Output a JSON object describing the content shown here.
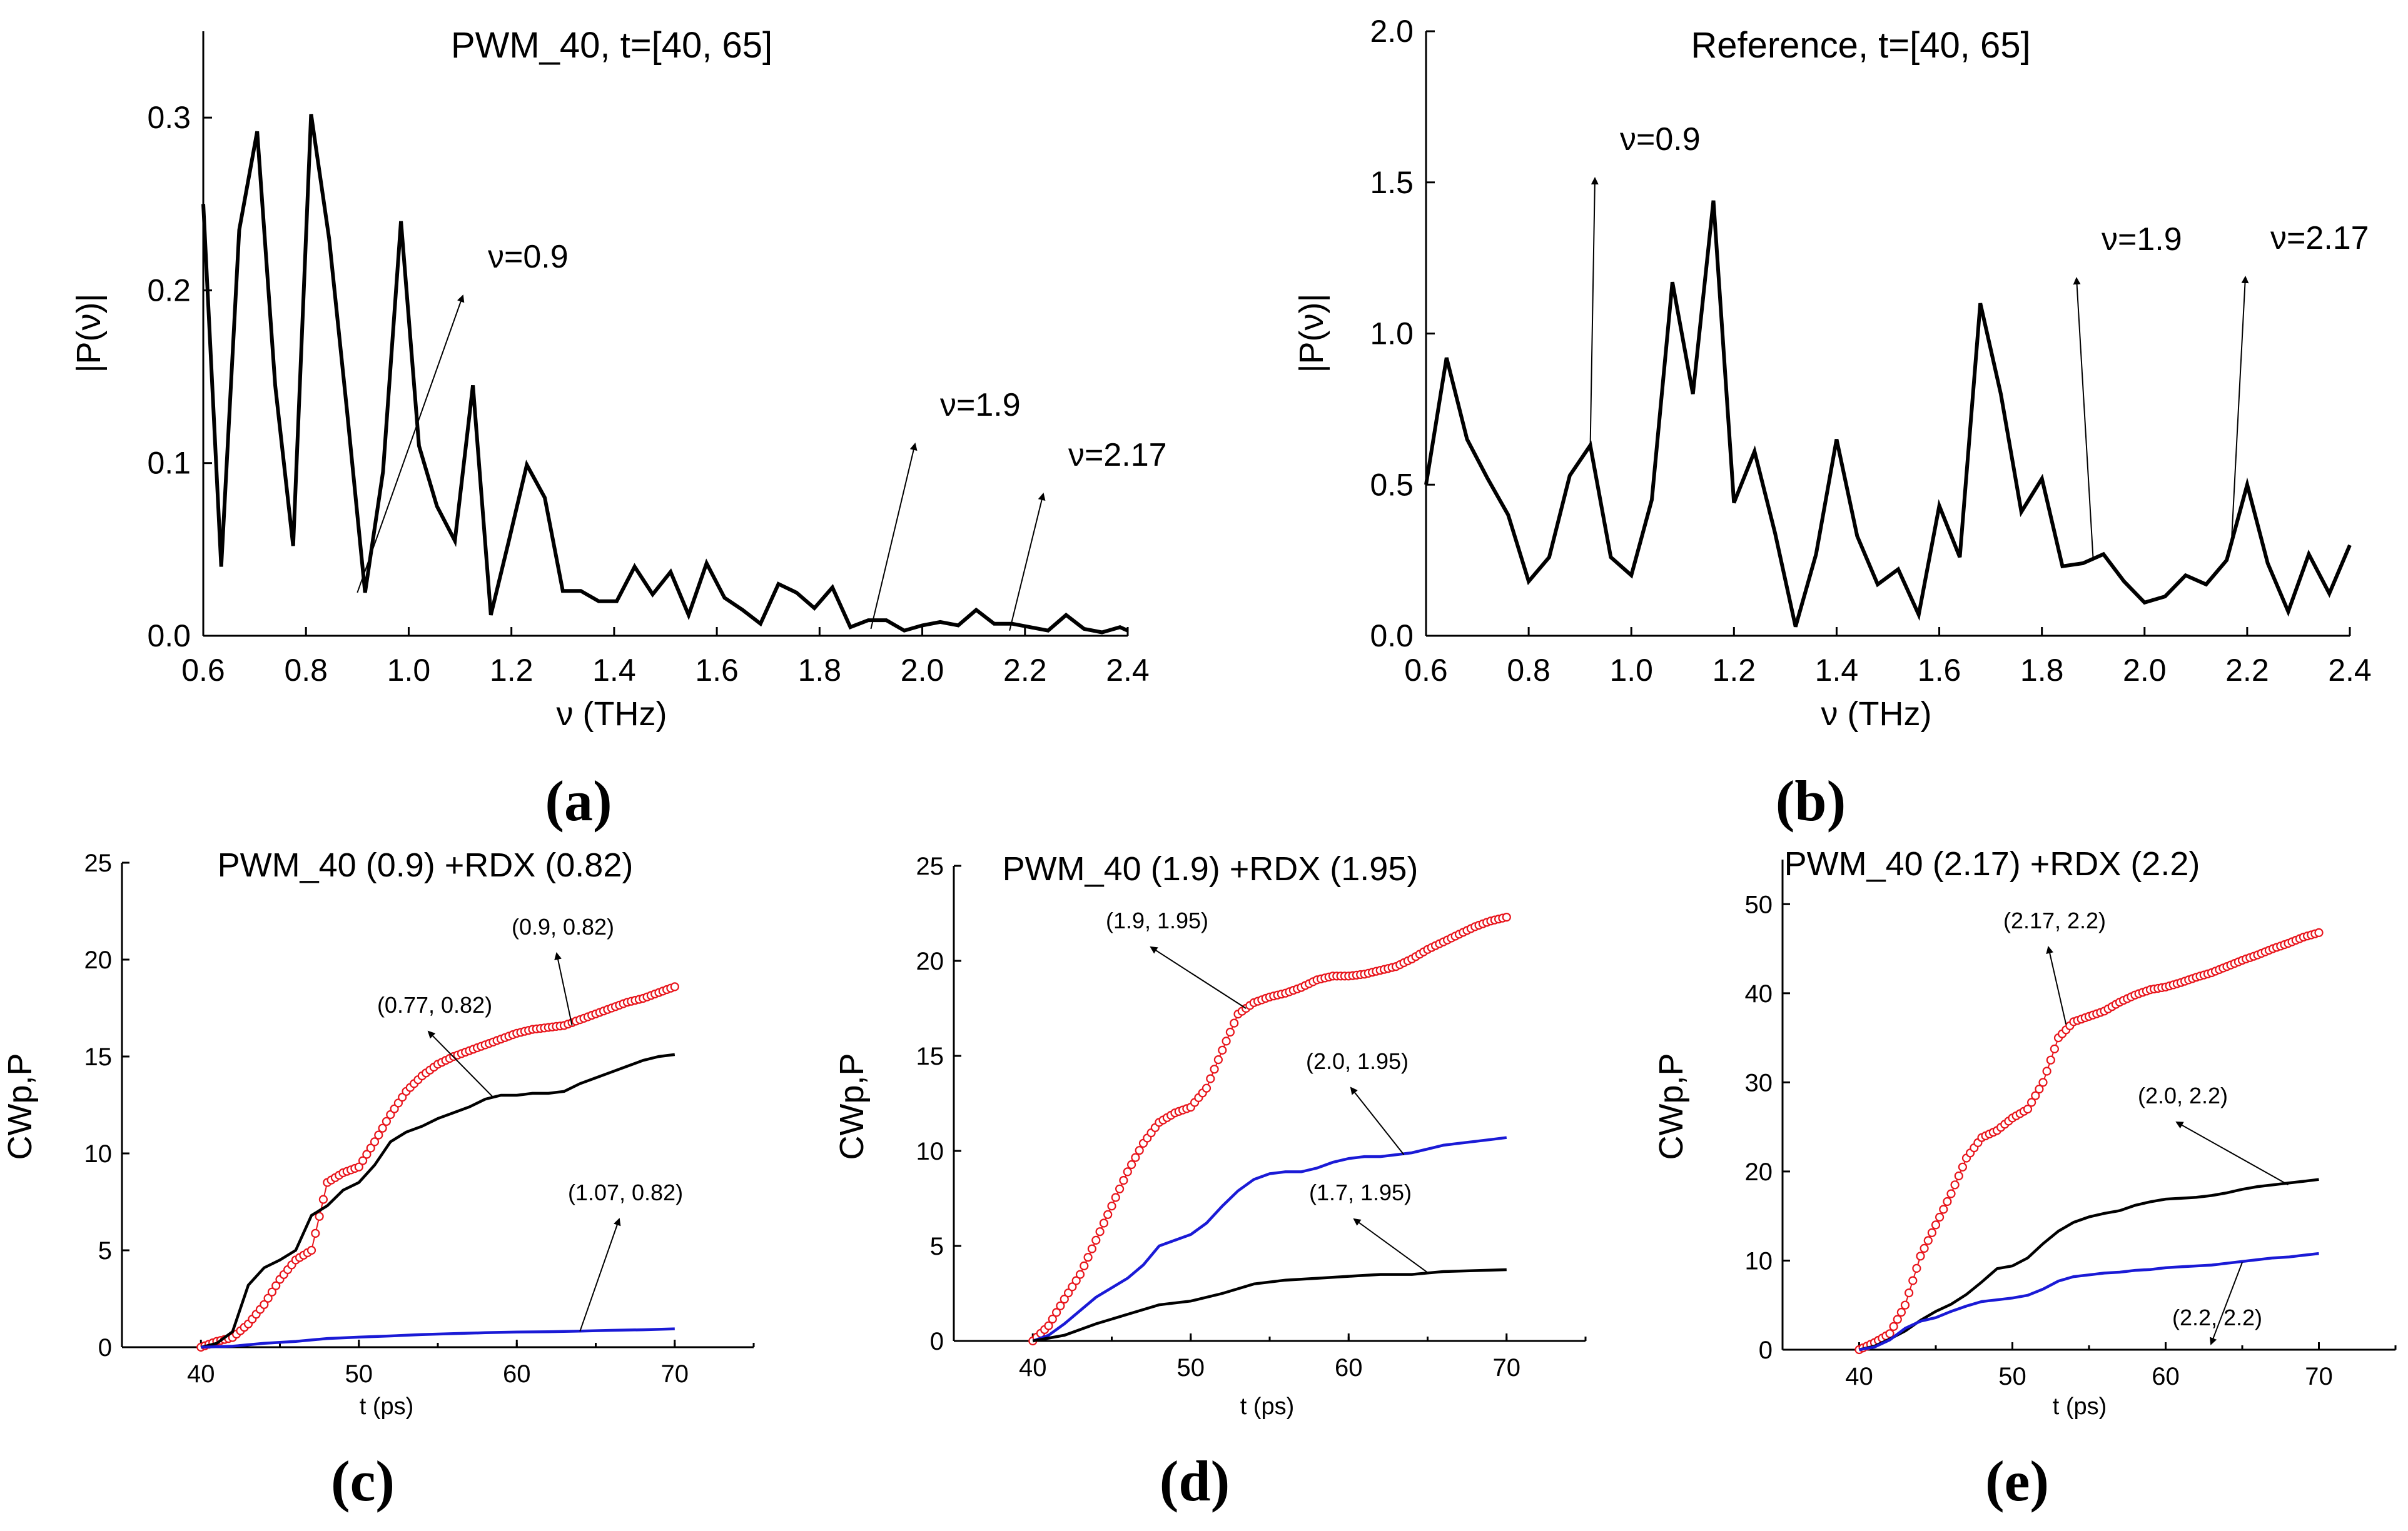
{
  "chart_data": [
    {
      "id": "a",
      "type": "line",
      "panel_label": "(a)",
      "title": "PWM_40, t=[40, 65]",
      "xlabel": "ν (THz)",
      "ylabel": "|P(ν)|",
      "xlim": [
        0.6,
        2.4
      ],
      "ylim": [
        0,
        0.35
      ],
      "xticks": [
        "0.6",
        "0.8",
        "1.0",
        "1.2",
        "1.4",
        "1.6",
        "1.8",
        "2.0",
        "2.2",
        "2.4"
      ],
      "yticks": [
        "0.0",
        "0.1",
        "0.2",
        "0.3"
      ],
      "series": [
        {
          "name": "PWM_40",
          "color": "#000000",
          "x": [
            0.6,
            0.635,
            0.67,
            0.705,
            0.74,
            0.775,
            0.81,
            0.845,
            0.88,
            0.915,
            0.95,
            0.985,
            1.02,
            1.055,
            1.09,
            1.125,
            1.16,
            1.195,
            1.23,
            1.265,
            1.3,
            1.335,
            1.37,
            1.405,
            1.44,
            1.475,
            1.51,
            1.545,
            1.58,
            1.615,
            1.65,
            1.685,
            1.72,
            1.755,
            1.79,
            1.825,
            1.86,
            1.895,
            1.93,
            1.965,
            2.0,
            2.035,
            2.07,
            2.105,
            2.14,
            2.175,
            2.21,
            2.245,
            2.28,
            2.315,
            2.35,
            2.385,
            2.4
          ],
          "y": [
            0.25,
            0.04,
            0.235,
            0.292,
            0.145,
            0.052,
            0.302,
            0.23,
            0.13,
            0.025,
            0.095,
            0.24,
            0.11,
            0.075,
            0.055,
            0.145,
            0.012,
            0.055,
            0.099,
            0.08,
            0.026,
            0.026,
            0.02,
            0.02,
            0.04,
            0.024,
            0.037,
            0.012,
            0.042,
            0.022,
            0.015,
            0.007,
            0.03,
            0.025,
            0.016,
            0.028,
            0.005,
            0.009,
            0.009,
            0.003,
            0.006,
            0.008,
            0.006,
            0.015,
            0.007,
            0.007,
            0.005,
            0.003,
            0.012,
            0.004,
            0.002,
            0.005,
            0.003
          ]
        }
      ],
      "annotations": [
        {
          "text": "ν=0.9",
          "x": 0.9,
          "y": 0.025
        },
        {
          "text": "ν=1.9",
          "x": 1.9,
          "y": 0.004
        },
        {
          "text": "ν=2.17",
          "x": 2.17,
          "y": 0.003
        }
      ]
    },
    {
      "id": "b",
      "type": "line",
      "panel_label": "(b)",
      "title": "Reference, t=[40, 65]",
      "xlabel": "ν (THz)",
      "ylabel": "|P(ν)|",
      "xlim": [
        0.6,
        2.4
      ],
      "ylim": [
        0,
        2.0
      ],
      "xticks": [
        "0.6",
        "0.8",
        "1.0",
        "1.2",
        "1.4",
        "1.6",
        "1.8",
        "2.0",
        "2.2",
        "2.4"
      ],
      "yticks": [
        "0.0",
        "0.5",
        "1.0",
        "1.5",
        "2.0"
      ],
      "series": [
        {
          "name": "Reference",
          "color": "#000000",
          "x": [
            0.6,
            0.64,
            0.68,
            0.72,
            0.76,
            0.8,
            0.84,
            0.88,
            0.92,
            0.96,
            1.0,
            1.04,
            1.08,
            1.12,
            1.16,
            1.2,
            1.24,
            1.28,
            1.32,
            1.36,
            1.4,
            1.44,
            1.48,
            1.52,
            1.56,
            1.6,
            1.64,
            1.68,
            1.72,
            1.76,
            1.8,
            1.84,
            1.88,
            1.92,
            1.96,
            2.0,
            2.04,
            2.08,
            2.12,
            2.16,
            2.2,
            2.24,
            2.28,
            2.32,
            2.36,
            2.4
          ],
          "y": [
            0.5,
            0.92,
            0.65,
            0.52,
            0.4,
            0.18,
            0.26,
            0.53,
            0.63,
            0.26,
            0.2,
            0.45,
            1.17,
            0.8,
            1.44,
            0.44,
            0.61,
            0.34,
            0.03,
            0.27,
            0.65,
            0.33,
            0.17,
            0.22,
            0.07,
            0.43,
            0.26,
            1.1,
            0.8,
            0.41,
            0.52,
            0.23,
            0.24,
            0.27,
            0.18,
            0.11,
            0.13,
            0.2,
            0.17,
            0.25,
            0.5,
            0.24,
            0.08,
            0.27,
            0.14,
            0.3
          ]
        }
      ],
      "annotations": [
        {
          "text": "ν=0.9",
          "x": 0.92,
          "y": 0.63
        },
        {
          "text": "ν=1.9",
          "x": 1.9,
          "y": 0.25
        },
        {
          "text": "ν=2.17",
          "x": 2.17,
          "y": 0.33
        }
      ]
    },
    {
      "id": "c",
      "type": "line",
      "panel_label": "(c)",
      "title": "PWM_40  (0.9) +RDX (0.82)",
      "xlabel": "t (ps)",
      "ylabel": "CWp,P",
      "xlim": [
        35,
        75
      ],
      "ylim": [
        0,
        25
      ],
      "xticks": [
        "40",
        "50",
        "60",
        "70"
      ],
      "yticks": [
        "0",
        "5",
        "10",
        "15",
        "20",
        "25"
      ],
      "series": [
        {
          "name": "(0.9, 0.82)",
          "color": "#e8141b",
          "marker": "circle",
          "x": [
            40,
            41,
            42,
            43,
            44,
            45,
            46,
            47,
            48,
            49,
            50,
            51,
            52,
            53,
            54,
            55,
            56,
            57,
            58,
            59,
            60,
            61,
            62,
            63,
            64,
            65,
            66,
            67,
            68,
            69,
            70
          ],
          "y": [
            0,
            0.3,
            0.5,
            1.2,
            2.2,
            3.5,
            4.5,
            5.0,
            8.5,
            9.0,
            9.3,
            10.6,
            12.0,
            13.2,
            14.0,
            14.6,
            15.0,
            15.3,
            15.6,
            15.9,
            16.2,
            16.4,
            16.5,
            16.6,
            16.9,
            17.2,
            17.5,
            17.8,
            18.0,
            18.3,
            18.6
          ]
        },
        {
          "name": "(0.77, 0.82)",
          "color": "#000000",
          "x": [
            40,
            41,
            42,
            43,
            44,
            45,
            46,
            47,
            48,
            49,
            50,
            51,
            52,
            53,
            54,
            55,
            56,
            57,
            58,
            59,
            60,
            61,
            62,
            63,
            64,
            65,
            66,
            67,
            68,
            69,
            70
          ],
          "y": [
            0,
            0.2,
            0.8,
            3.2,
            4.1,
            4.5,
            5.0,
            6.8,
            7.3,
            8.1,
            8.5,
            9.4,
            10.6,
            11.1,
            11.4,
            11.8,
            12.1,
            12.4,
            12.8,
            13.0,
            13.0,
            13.1,
            13.1,
            13.2,
            13.6,
            13.9,
            14.2,
            14.5,
            14.8,
            15.0,
            15.1
          ]
        },
        {
          "name": "(1.07, 0.82)",
          "color": "#1a1ad6",
          "x": [
            40,
            42,
            44,
            46,
            48,
            50,
            52,
            54,
            56,
            58,
            60,
            62,
            64,
            66,
            68,
            70
          ],
          "y": [
            0,
            0.05,
            0.2,
            0.3,
            0.45,
            0.52,
            0.58,
            0.65,
            0.7,
            0.75,
            0.78,
            0.8,
            0.83,
            0.87,
            0.9,
            0.95
          ]
        }
      ],
      "annotations": [
        {
          "text": "(0.9, 0.82)",
          "x": 63.5,
          "y": 16.6
        },
        {
          "text": "(0.77, 0.82)",
          "x": 58.5,
          "y": 12.9
        },
        {
          "text": "(1.07, 0.82)",
          "x": 64,
          "y": 0.82
        }
      ]
    },
    {
      "id": "d",
      "type": "line",
      "panel_label": "(d)",
      "title": "PWM_40 (1.9)  +RDX (1.95)",
      "xlabel": "t (ps)",
      "ylabel": "CWp,P",
      "xlim": [
        35,
        75
      ],
      "ylim": [
        0,
        25
      ],
      "xticks": [
        "40",
        "50",
        "60",
        "70"
      ],
      "yticks": [
        "0",
        "5",
        "10",
        "15",
        "20",
        "25"
      ],
      "series": [
        {
          "name": "(1.9, 1.95)",
          "color": "#e8141b",
          "marker": "circle",
          "x": [
            40,
            41,
            42,
            43,
            44,
            45,
            46,
            47,
            48,
            49,
            50,
            51,
            52,
            53,
            54,
            55,
            56,
            57,
            58,
            59,
            60,
            61,
            62,
            63,
            64,
            65,
            66,
            67,
            68,
            69,
            70
          ],
          "y": [
            0,
            0.8,
            2.2,
            3.5,
            5.3,
            7.1,
            8.9,
            10.4,
            11.5,
            12.0,
            12.3,
            13.3,
            15.3,
            17.2,
            17.8,
            18.1,
            18.3,
            18.6,
            19.0,
            19.2,
            19.2,
            19.3,
            19.5,
            19.7,
            20.1,
            20.6,
            21.0,
            21.4,
            21.8,
            22.1,
            22.3
          ]
        },
        {
          "name": "(2.0, 1.95)",
          "color": "#1a1ad6",
          "x": [
            40,
            41,
            42,
            43,
            44,
            45,
            46,
            47,
            48,
            49,
            50,
            51,
            52,
            53,
            54,
            55,
            56,
            57,
            58,
            59,
            60,
            61,
            62,
            63,
            64,
            65,
            66,
            67,
            68,
            69,
            70
          ],
          "y": [
            0,
            0.3,
            0.9,
            1.6,
            2.3,
            2.8,
            3.3,
            4.0,
            5.0,
            5.3,
            5.6,
            6.2,
            7.1,
            7.9,
            8.5,
            8.8,
            8.9,
            8.9,
            9.1,
            9.4,
            9.6,
            9.7,
            9.7,
            9.8,
            9.9,
            10.1,
            10.3,
            10.4,
            10.5,
            10.6,
            10.7
          ]
        },
        {
          "name": "(1.7, 1.95)",
          "color": "#000000",
          "x": [
            40,
            42,
            44,
            46,
            48,
            50,
            52,
            54,
            56,
            58,
            60,
            62,
            64,
            66,
            68,
            70
          ],
          "y": [
            0,
            0.3,
            0.9,
            1.4,
            1.9,
            2.1,
            2.5,
            3.0,
            3.2,
            3.3,
            3.4,
            3.5,
            3.5,
            3.65,
            3.7,
            3.75
          ]
        }
      ],
      "annotations": [
        {
          "text": "(1.9, 1.95)",
          "x": 53.5,
          "y": 17.5
        },
        {
          "text": "(2.0, 1.95)",
          "x": 63.5,
          "y": 9.8
        },
        {
          "text": "(1.7, 1.95)",
          "x": 65,
          "y": 3.6
        }
      ]
    },
    {
      "id": "e",
      "type": "line",
      "panel_label": "(e)",
      "title": "PWM_40 (2.17) +RDX (2.2)",
      "xlabel": "t (ps)",
      "ylabel": "CWp,P",
      "xlim": [
        35,
        75
      ],
      "ylim": [
        0,
        55
      ],
      "xticks": [
        "40",
        "50",
        "60",
        "70"
      ],
      "yticks": [
        "0",
        "10",
        "20",
        "30",
        "40",
        "50"
      ],
      "series": [
        {
          "name": "(2.17, 2.2)",
          "color": "#e8141b",
          "marker": "circle",
          "x": [
            40,
            41,
            42,
            43,
            44,
            45,
            46,
            47,
            48,
            49,
            50,
            51,
            52,
            53,
            54,
            55,
            56,
            57,
            58,
            59,
            60,
            61,
            62,
            63,
            64,
            65,
            66,
            67,
            68,
            69,
            70
          ],
          "y": [
            0,
            0.8,
            1.8,
            5.0,
            10.5,
            14.0,
            17.5,
            21.5,
            23.8,
            24.6,
            26.0,
            27.0,
            30.0,
            35.0,
            36.8,
            37.4,
            38.0,
            39.0,
            39.8,
            40.4,
            40.7,
            41.2,
            41.8,
            42.3,
            43.0,
            43.7,
            44.3,
            45.0,
            45.6,
            46.3,
            46.8
          ]
        },
        {
          "name": "(2.0, 2.2)",
          "color": "#000000",
          "x": [
            40,
            41,
            42,
            43,
            44,
            45,
            46,
            47,
            48,
            49,
            50,
            51,
            52,
            53,
            54,
            55,
            56,
            57,
            58,
            59,
            60,
            61,
            62,
            63,
            64,
            65,
            66,
            67,
            68,
            69,
            70
          ],
          "y": [
            0,
            0.4,
            1.2,
            2.1,
            3.3,
            4.3,
            5.1,
            6.2,
            7.6,
            9.1,
            9.4,
            10.3,
            11.9,
            13.3,
            14.3,
            14.9,
            15.3,
            15.6,
            16.2,
            16.6,
            16.9,
            17.0,
            17.1,
            17.3,
            17.6,
            18.0,
            18.3,
            18.5,
            18.7,
            18.9,
            19.1
          ]
        },
        {
          "name": "(2.2, 2.2)",
          "color": "#1a1ad6",
          "x": [
            40,
            41,
            42,
            43,
            44,
            45,
            46,
            47,
            48,
            49,
            50,
            51,
            52,
            53,
            54,
            55,
            56,
            57,
            58,
            59,
            60,
            61,
            62,
            63,
            64,
            65,
            66,
            67,
            68,
            69,
            70
          ],
          "y": [
            0,
            0.3,
            1.1,
            2.4,
            3.2,
            3.6,
            4.3,
            4.9,
            5.4,
            5.6,
            5.8,
            6.1,
            6.8,
            7.7,
            8.2,
            8.4,
            8.6,
            8.7,
            8.9,
            9.0,
            9.2,
            9.3,
            9.4,
            9.5,
            9.7,
            9.9,
            10.1,
            10.3,
            10.4,
            10.6,
            10.8
          ]
        }
      ],
      "annotations": [
        {
          "text": "(2.17, 2.2)",
          "x": 53.5,
          "y": 36.5
        },
        {
          "text": "(2.0, 2.2)",
          "x": 68,
          "y": 18.5
        },
        {
          "text": "(2.2, 2.2)",
          "x": 65,
          "y": 9.8
        }
      ]
    }
  ]
}
